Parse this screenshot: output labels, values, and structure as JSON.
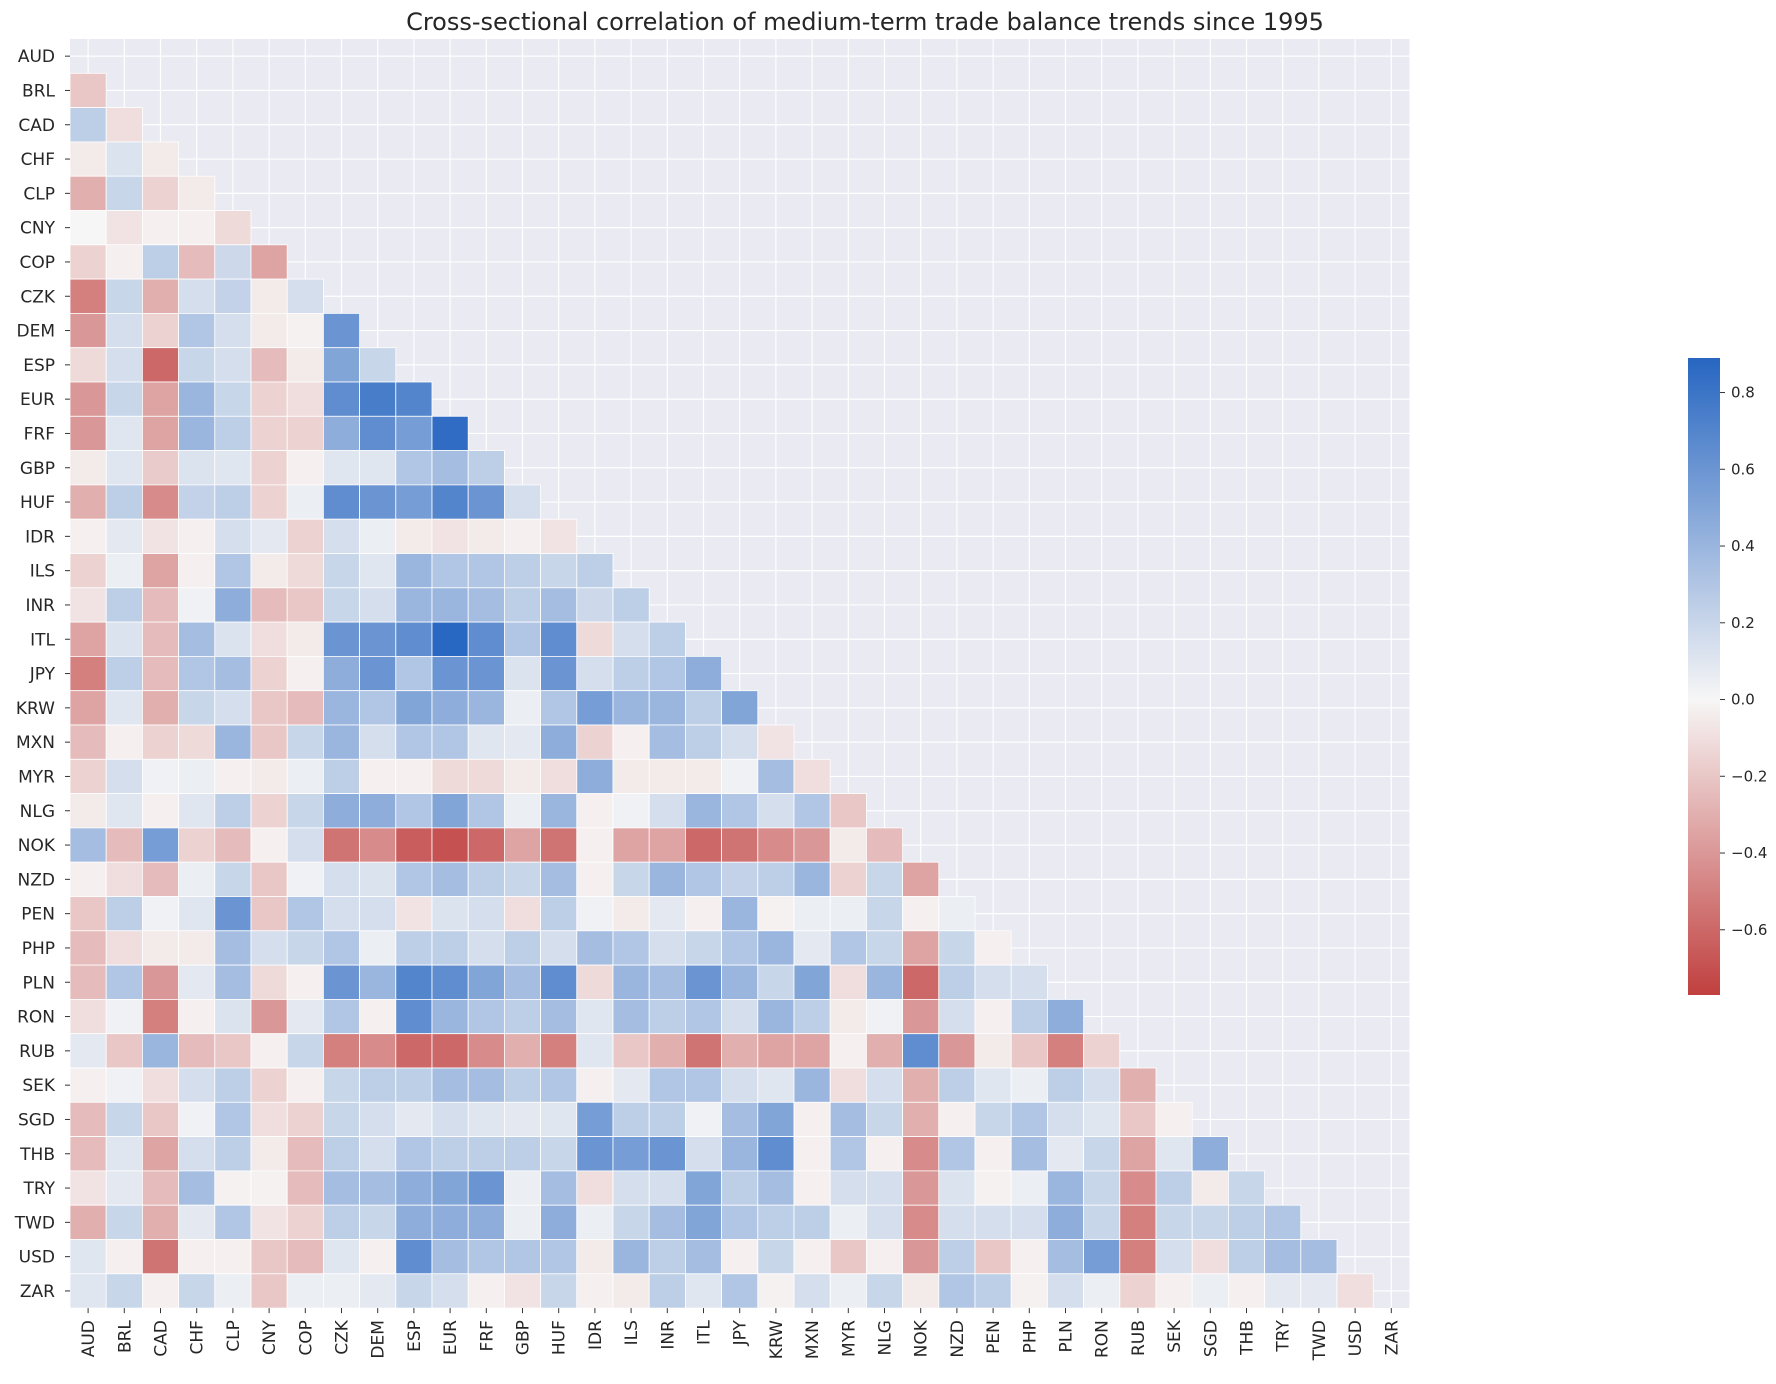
{
  "chart_data": {
    "type": "heatmap",
    "title": "Cross-sectional correlation of medium-term trade balance trends since 1995",
    "mask": "upper-triangle-and-diagonal",
    "labels": [
      "AUD",
      "BRL",
      "CAD",
      "CHF",
      "CLP",
      "CNY",
      "COP",
      "CZK",
      "DEM",
      "ESP",
      "EUR",
      "FRF",
      "GBP",
      "HUF",
      "IDR",
      "ILS",
      "INR",
      "ITL",
      "JPY",
      "KRW",
      "MXN",
      "MYR",
      "NLG",
      "NOK",
      "NZD",
      "PEN",
      "PHP",
      "PLN",
      "RON",
      "RUB",
      "SEK",
      "SGD",
      "THB",
      "TRY",
      "TWD",
      "USD",
      "ZAR"
    ],
    "lower_triangle_rows": [
      [],
      [
        -0.2
      ],
      [
        0.25,
        -0.1
      ],
      [
        -0.05,
        0.12,
        -0.05
      ],
      [
        -0.3,
        0.2,
        -0.15,
        -0.05
      ],
      [
        0.0,
        -0.08,
        -0.03,
        -0.03,
        -0.12
      ],
      [
        -0.15,
        -0.03,
        0.25,
        -0.25,
        0.18,
        -0.35
      ],
      [
        -0.5,
        0.2,
        -0.3,
        0.15,
        0.22,
        -0.05,
        0.15
      ],
      [
        -0.4,
        0.15,
        -0.15,
        0.3,
        0.15,
        -0.05,
        -0.02,
        0.6
      ],
      [
        -0.12,
        0.15,
        -0.6,
        0.2,
        0.15,
        -0.25,
        -0.05,
        0.5,
        0.2
      ],
      [
        -0.4,
        0.2,
        -0.35,
        0.4,
        0.2,
        -0.15,
        -0.1,
        0.65,
        0.75,
        0.7
      ],
      [
        -0.4,
        0.1,
        -0.35,
        0.4,
        0.25,
        -0.15,
        -0.15,
        0.45,
        0.65,
        0.55,
        0.85
      ],
      [
        -0.05,
        0.1,
        -0.18,
        0.12,
        0.1,
        -0.15,
        -0.03,
        0.1,
        0.1,
        0.3,
        0.35,
        0.25
      ],
      [
        -0.3,
        0.25,
        -0.45,
        0.22,
        0.25,
        -0.15,
        0.05,
        0.65,
        0.6,
        0.55,
        0.7,
        0.6,
        0.15
      ],
      [
        -0.03,
        0.08,
        -0.08,
        -0.03,
        0.15,
        0.08,
        -0.15,
        0.15,
        0.05,
        -0.05,
        -0.08,
        -0.05,
        -0.03,
        -0.08
      ],
      [
        -0.15,
        0.05,
        -0.35,
        -0.03,
        0.3,
        -0.05,
        -0.12,
        0.2,
        0.1,
        0.4,
        0.3,
        0.3,
        0.25,
        0.2,
        0.25
      ],
      [
        -0.08,
        0.25,
        -0.25,
        0.03,
        0.45,
        -0.25,
        -0.2,
        0.2,
        0.15,
        0.4,
        0.4,
        0.35,
        0.25,
        0.35,
        0.18,
        0.25
      ],
      [
        -0.35,
        0.12,
        -0.25,
        0.35,
        0.12,
        -0.1,
        -0.05,
        0.6,
        0.6,
        0.65,
        0.88,
        0.65,
        0.3,
        0.65,
        -0.12,
        0.15,
        0.25
      ],
      [
        -0.5,
        0.25,
        -0.25,
        0.3,
        0.35,
        -0.15,
        -0.03,
        0.45,
        0.6,
        0.3,
        0.6,
        0.6,
        0.12,
        0.6,
        0.15,
        0.25,
        0.3,
        0.45
      ],
      [
        -0.35,
        0.1,
        -0.3,
        0.2,
        0.15,
        -0.2,
        -0.25,
        0.4,
        0.3,
        0.5,
        0.45,
        0.4,
        0.05,
        0.3,
        0.55,
        0.4,
        0.4,
        0.25,
        0.5
      ],
      [
        -0.25,
        -0.03,
        -0.15,
        -0.12,
        0.4,
        -0.2,
        0.2,
        0.4,
        0.15,
        0.3,
        0.3,
        0.1,
        0.08,
        0.45,
        -0.15,
        -0.03,
        0.35,
        0.25,
        0.15,
        -0.08
      ],
      [
        -0.15,
        0.15,
        0.03,
        0.05,
        -0.03,
        -0.05,
        0.05,
        0.25,
        -0.03,
        -0.03,
        -0.12,
        -0.12,
        -0.05,
        -0.1,
        0.45,
        -0.05,
        -0.05,
        -0.05,
        0.03,
        0.35,
        -0.1
      ],
      [
        -0.05,
        0.1,
        -0.03,
        0.1,
        0.25,
        -0.15,
        0.2,
        0.45,
        0.45,
        0.3,
        0.5,
        0.3,
        0.05,
        0.4,
        -0.03,
        0.03,
        0.15,
        0.4,
        0.3,
        0.15,
        0.3,
        -0.2
      ],
      [
        0.35,
        -0.25,
        0.55,
        -0.15,
        -0.25,
        -0.03,
        0.15,
        -0.55,
        -0.45,
        -0.65,
        -0.7,
        -0.6,
        -0.35,
        -0.55,
        -0.03,
        -0.35,
        -0.35,
        -0.6,
        -0.55,
        -0.45,
        -0.4,
        -0.05,
        -0.25
      ],
      [
        -0.03,
        -0.1,
        -0.25,
        0.05,
        0.2,
        -0.2,
        0.03,
        0.15,
        0.12,
        0.3,
        0.35,
        0.25,
        0.2,
        0.35,
        -0.03,
        0.2,
        0.4,
        0.3,
        0.22,
        0.25,
        0.4,
        -0.15,
        0.2,
        -0.35
      ],
      [
        -0.2,
        0.25,
        0.03,
        0.1,
        0.6,
        -0.2,
        0.3,
        0.15,
        0.15,
        -0.08,
        0.12,
        0.15,
        -0.1,
        0.25,
        0.03,
        -0.05,
        0.08,
        -0.03,
        0.4,
        -0.02,
        0.05,
        0.05,
        0.2,
        -0.03,
        0.05
      ],
      [
        -0.25,
        -0.1,
        -0.05,
        -0.05,
        0.35,
        0.15,
        0.2,
        0.3,
        0.05,
        0.25,
        0.25,
        0.15,
        0.25,
        0.15,
        0.35,
        0.3,
        0.15,
        0.2,
        0.3,
        0.4,
        0.08,
        0.3,
        0.2,
        -0.35,
        0.2,
        -0.03
      ],
      [
        -0.25,
        0.3,
        -0.4,
        0.08,
        0.35,
        -0.12,
        -0.03,
        0.6,
        0.4,
        0.7,
        0.65,
        0.5,
        0.35,
        0.65,
        -0.12,
        0.4,
        0.35,
        0.6,
        0.4,
        0.2,
        0.5,
        -0.1,
        0.4,
        -0.6,
        0.25,
        0.15,
        0.15
      ],
      [
        -0.1,
        0.03,
        -0.5,
        -0.03,
        0.12,
        -0.4,
        0.08,
        0.3,
        -0.03,
        0.65,
        0.4,
        0.3,
        0.25,
        0.35,
        0.1,
        0.35,
        0.25,
        0.3,
        0.15,
        0.4,
        0.25,
        -0.05,
        0.03,
        -0.4,
        0.15,
        -0.03,
        0.25,
        0.45
      ],
      [
        0.08,
        -0.2,
        0.4,
        -0.25,
        -0.2,
        -0.03,
        0.2,
        -0.5,
        -0.45,
        -0.6,
        -0.6,
        -0.45,
        -0.3,
        -0.5,
        0.1,
        -0.2,
        -0.3,
        -0.55,
        -0.3,
        -0.35,
        -0.35,
        -0.03,
        -0.3,
        0.65,
        -0.4,
        -0.05,
        -0.2,
        -0.5,
        -0.15
      ],
      [
        -0.03,
        0.03,
        -0.1,
        0.15,
        0.25,
        -0.15,
        -0.03,
        0.2,
        0.25,
        0.25,
        0.35,
        0.35,
        0.25,
        0.3,
        -0.03,
        0.08,
        0.3,
        0.3,
        0.15,
        0.1,
        0.4,
        -0.1,
        0.15,
        -0.3,
        0.25,
        0.1,
        0.05,
        0.25,
        0.15,
        -0.3
      ],
      [
        -0.25,
        0.2,
        -0.2,
        0.03,
        0.3,
        -0.1,
        -0.15,
        0.2,
        0.15,
        0.08,
        0.15,
        0.1,
        0.08,
        0.1,
        0.55,
        0.25,
        0.25,
        0.03,
        0.35,
        0.5,
        -0.03,
        0.35,
        0.2,
        -0.3,
        -0.03,
        0.2,
        0.3,
        0.15,
        0.1,
        -0.2,
        -0.03
      ],
      [
        -0.25,
        0.1,
        -0.35,
        0.15,
        0.25,
        -0.05,
        -0.25,
        0.25,
        0.15,
        0.3,
        0.25,
        0.25,
        0.25,
        0.2,
        0.6,
        0.55,
        0.6,
        0.15,
        0.4,
        0.65,
        -0.03,
        0.3,
        -0.03,
        -0.45,
        0.3,
        -0.03,
        0.35,
        0.08,
        0.2,
        -0.35,
        0.1,
        0.45
      ],
      [
        -0.08,
        0.08,
        -0.25,
        0.35,
        -0.02,
        -0.02,
        -0.25,
        0.35,
        0.35,
        0.45,
        0.5,
        0.6,
        0.05,
        0.35,
        -0.1,
        0.15,
        0.15,
        0.5,
        0.25,
        0.35,
        -0.03,
        0.15,
        0.15,
        -0.4,
        0.12,
        -0.02,
        0.05,
        0.4,
        0.2,
        -0.45,
        0.25,
        -0.05,
        0.2
      ],
      [
        -0.3,
        0.2,
        -0.3,
        0.08,
        0.3,
        -0.08,
        -0.15,
        0.25,
        0.2,
        0.45,
        0.45,
        0.45,
        0.05,
        0.45,
        0.05,
        0.2,
        0.35,
        0.5,
        0.3,
        0.25,
        0.25,
        0.05,
        0.15,
        -0.45,
        0.15,
        0.15,
        0.15,
        0.45,
        0.2,
        -0.5,
        0.2,
        0.2,
        0.25,
        0.3
      ],
      [
        0.1,
        -0.03,
        -0.55,
        -0.03,
        -0.03,
        -0.2,
        -0.25,
        0.1,
        -0.03,
        0.65,
        0.35,
        0.3,
        0.3,
        0.3,
        -0.05,
        0.4,
        0.25,
        0.35,
        -0.03,
        0.2,
        -0.03,
        -0.2,
        -0.03,
        -0.4,
        0.25,
        -0.2,
        -0.03,
        0.35,
        0.55,
        -0.5,
        0.15,
        -0.1,
        0.25,
        0.35,
        0.35
      ],
      [
        0.1,
        0.2,
        -0.03,
        0.2,
        0.05,
        -0.2,
        0.05,
        0.05,
        0.08,
        0.2,
        0.15,
        -0.03,
        -0.08,
        0.2,
        -0.03,
        -0.05,
        0.25,
        0.1,
        0.3,
        -0.02,
        0.15,
        0.05,
        0.2,
        -0.05,
        0.3,
        0.25,
        -0.02,
        0.15,
        0.05,
        -0.15,
        -0.03,
        0.05,
        -0.03,
        0.08,
        0.08,
        -0.1
      ]
    ],
    "colorbar": {
      "min": -0.77,
      "max": 0.89,
      "ticks": [
        0.8,
        0.6,
        0.4,
        0.2,
        0.0,
        -0.2,
        -0.4,
        -0.6
      ],
      "tick_labels": [
        "0.8",
        "0.6",
        "0.4",
        "0.2",
        "0.0",
        "−0.2",
        "−0.4",
        "−0.6"
      ],
      "colors": {
        "negative": "#c0403f",
        "middle": "#f7f6f6",
        "positive": "#2766c1"
      }
    },
    "grid": true,
    "background_color": "#eaeaf2"
  }
}
